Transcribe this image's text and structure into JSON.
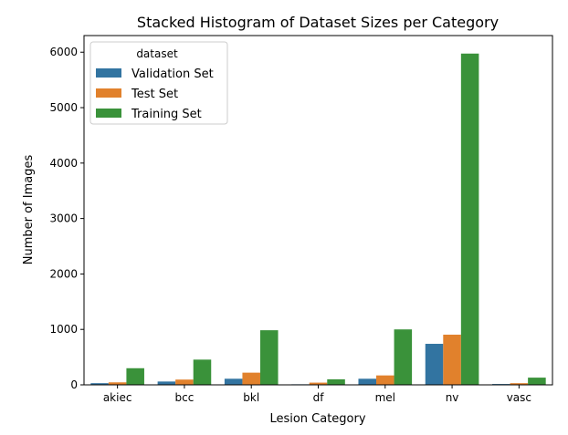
{
  "chart_data": {
    "type": "bar",
    "title": "Stacked Histogram of Dataset Sizes per Category",
    "xlabel": "Lesion Category",
    "ylabel": "Number of Images",
    "categories": [
      "akiec",
      "bcc",
      "bkl",
      "df",
      "mel",
      "nv",
      "vasc"
    ],
    "ylim": [
      0,
      6300
    ],
    "yticks": [
      0,
      1000,
      2000,
      3000,
      4000,
      5000,
      6000
    ],
    "grid": false,
    "legend": {
      "title": "dataset",
      "placement": "top-left"
    },
    "series": [
      {
        "name": "Validation Set",
        "color": "#3274a1",
        "values": [
          30,
          60,
          110,
          10,
          110,
          740,
          15
        ]
      },
      {
        "name": "Test Set",
        "color": "#e1812c",
        "values": [
          45,
          95,
          220,
          40,
          170,
          905,
          30
        ]
      },
      {
        "name": "Training Set",
        "color": "#3a923a",
        "values": [
          300,
          455,
          985,
          100,
          1000,
          5975,
          130
        ]
      }
    ]
  }
}
